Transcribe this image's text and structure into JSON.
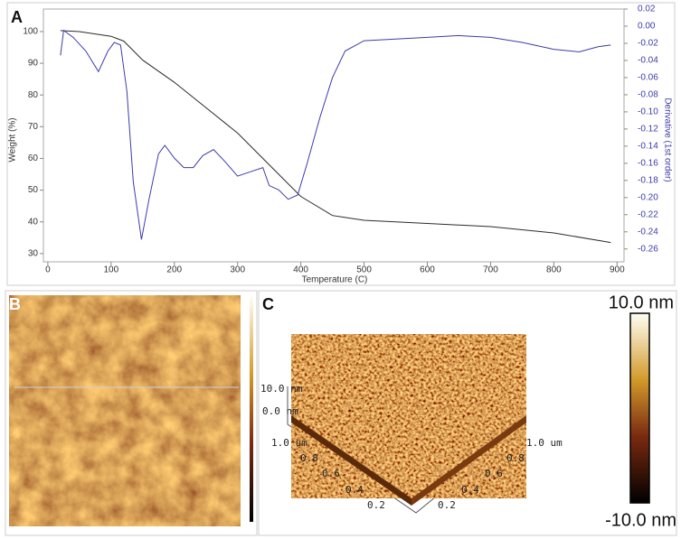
{
  "chart_data": {
    "type": "line",
    "panel_label": "A",
    "x_label": "Temperature (C)",
    "y_label": "Weight (%)",
    "y2_label": "Derivative (1st order)",
    "xlim": [
      -7,
      911
    ],
    "xticks": [
      0,
      100,
      200,
      300,
      400,
      500,
      600,
      700,
      800,
      900
    ],
    "ylim": [
      27.4,
      107.1
    ],
    "yticks": [
      30,
      40,
      50,
      60,
      70,
      80,
      90,
      100
    ],
    "y2lim": [
      -0.275,
      0.02
    ],
    "y2ticks": [
      0.02,
      {
        "value": 0,
        "label": "0.00"
      },
      -0.02,
      -0.04,
      -0.06,
      -0.08,
      {
        "value": -0.1,
        "label": "-0.10"
      },
      -0.12,
      -0.14,
      -0.16,
      -0.18,
      {
        "value": -0.2,
        "label": "-0.20"
      },
      -0.22,
      -0.24,
      -0.26
    ],
    "series": [
      {
        "color": "#2b2b2b",
        "x": [
          20,
          50,
          100,
          120,
          150,
          200,
          250,
          300,
          350,
          400,
          450,
          500,
          600,
          700,
          800,
          890
        ],
        "values": [
          100.3,
          100,
          98.5,
          97,
          91,
          84,
          76,
          68,
          58,
          48,
          42,
          40.5,
          39.5,
          38.5,
          36.5,
          33.5
        ]
      },
      {
        "color": "#3c3caa",
        "axis": "y2",
        "x": [
          20,
          25,
          40,
          60,
          80,
          95,
          105,
          115,
          125,
          135,
          148,
          160,
          175,
          185,
          200,
          215,
          230,
          245,
          262,
          280,
          300,
          320,
          340,
          350,
          365,
          380,
          395,
          410,
          430,
          450,
          470,
          500,
          600,
          650,
          700,
          750,
          800,
          840,
          870,
          890
        ],
        "values": [
          -0.034,
          -0.005,
          -0.013,
          -0.029,
          -0.053,
          -0.029,
          -0.019,
          -0.022,
          -0.076,
          -0.181,
          -0.249,
          -0.202,
          -0.149,
          -0.139,
          -0.154,
          -0.165,
          -0.165,
          -0.151,
          -0.144,
          -0.158,
          -0.175,
          -0.17,
          -0.165,
          -0.186,
          -0.191,
          -0.202,
          -0.197,
          -0.16,
          -0.107,
          -0.06,
          -0.029,
          -0.017,
          -0.013,
          -0.011,
          -0.013,
          -0.019,
          -0.027,
          -0.03,
          -0.024,
          -0.022
        ]
      }
    ]
  },
  "panel_b": {
    "label": "B"
  },
  "panel_c": {
    "label": "C",
    "z_labels": [
      "10.0 nm",
      "0.0 nm"
    ],
    "left_axis": [
      "1.0 um",
      "0.8",
      "0.6",
      "0.4",
      "0.2"
    ],
    "right_axis": [
      "1.0 um",
      "0.8",
      "0.6",
      "0.4",
      "0.2"
    ],
    "colorbar": {
      "max": "10.0 nm",
      "min": "-10.0 nm"
    }
  }
}
